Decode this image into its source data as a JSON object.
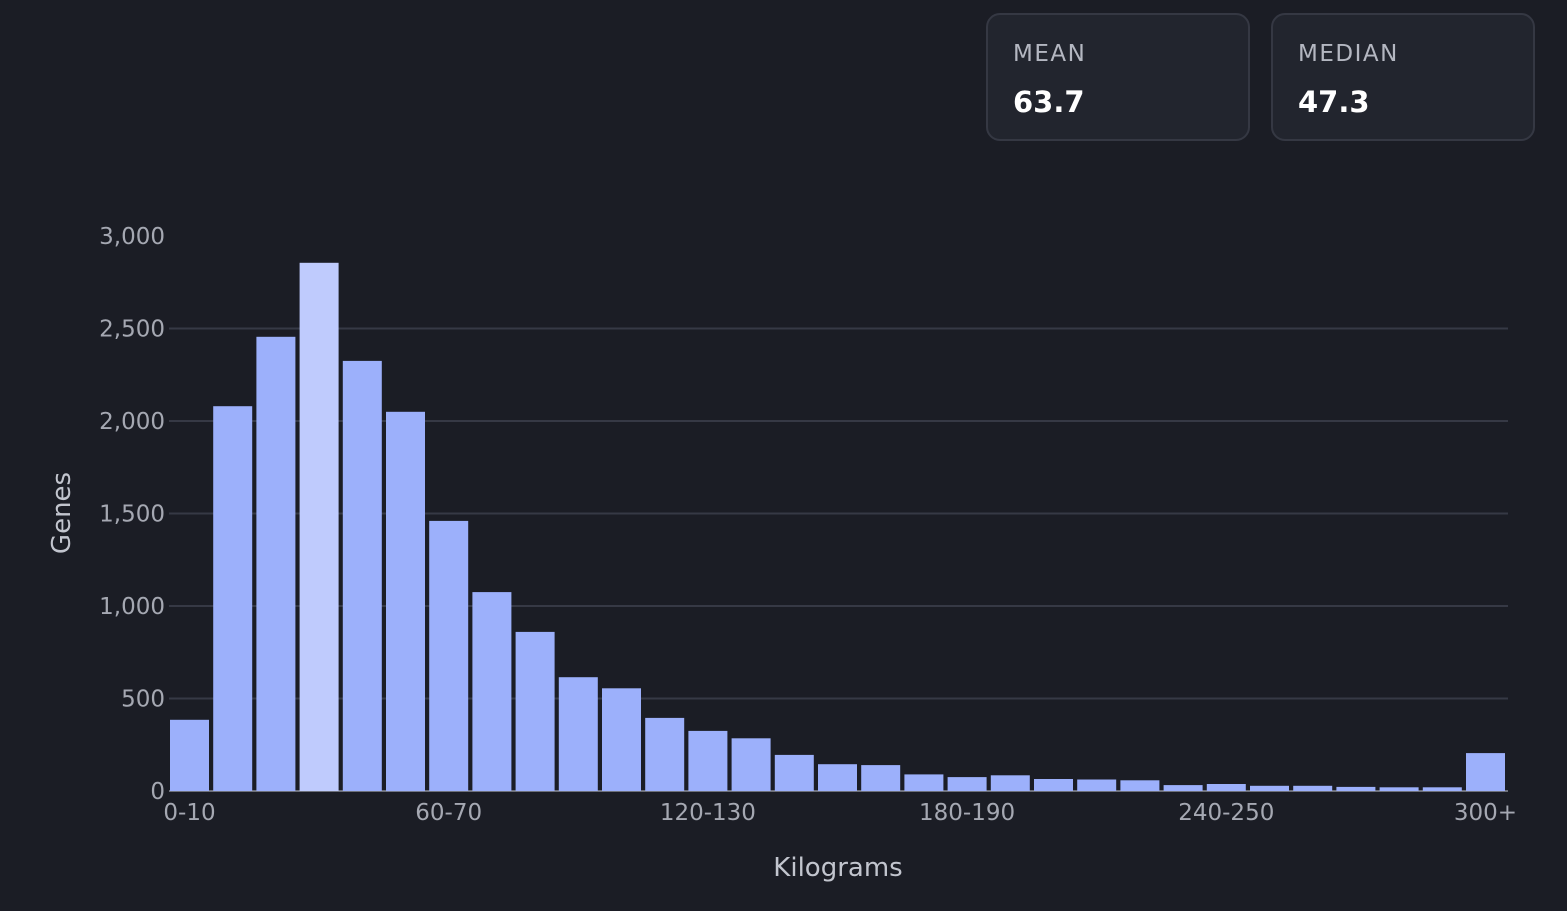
{
  "stats": [
    {
      "label": "MEAN",
      "value": "63.7"
    },
    {
      "label": "MEDIAN",
      "value": "47.3"
    }
  ],
  "chart_data": {
    "type": "bar",
    "xlabel": "Kilograms",
    "ylabel": "Genes",
    "ylim": [
      0,
      3000
    ],
    "yticks": [
      0,
      500,
      1000,
      1500,
      2000,
      2500,
      3000
    ],
    "ytick_labels": [
      "0",
      "500",
      "1,000",
      "1,500",
      "2,000",
      "2,500",
      "3,000"
    ],
    "xtick_labels": [
      {
        "index": 0,
        "label": "0-10"
      },
      {
        "index": 6,
        "label": "60-70"
      },
      {
        "index": 12,
        "label": "120-130"
      },
      {
        "index": 18,
        "label": "180-190"
      },
      {
        "index": 24,
        "label": "240-250"
      },
      {
        "index": 30,
        "label": "300+"
      }
    ],
    "categories": [
      "0-10",
      "10-20",
      "20-30",
      "30-40",
      "40-50",
      "50-60",
      "60-70",
      "70-80",
      "80-90",
      "90-100",
      "100-110",
      "110-120",
      "120-130",
      "130-140",
      "140-150",
      "150-160",
      "160-170",
      "170-180",
      "180-190",
      "190-200",
      "200-210",
      "210-220",
      "220-230",
      "230-240",
      "240-250",
      "250-260",
      "260-270",
      "270-280",
      "280-290",
      "290-300",
      "300+"
    ],
    "values": [
      385,
      2080,
      2455,
      2855,
      2325,
      2050,
      1460,
      1075,
      860,
      615,
      555,
      395,
      325,
      285,
      195,
      145,
      140,
      90,
      75,
      85,
      65,
      62,
      58,
      32,
      38,
      28,
      28,
      22,
      20,
      20,
      205
    ],
    "highlight_index": 3,
    "colors": {
      "bar": "#9cb0fb",
      "highlight": "#bfcbfd",
      "grid": "#363945"
    },
    "grid": true
  }
}
